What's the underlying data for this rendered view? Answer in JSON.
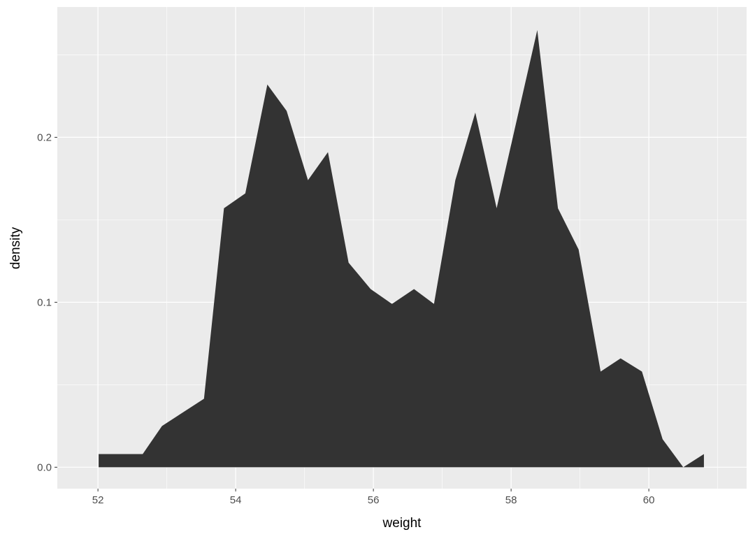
{
  "chart_data": {
    "type": "area",
    "title": "",
    "xlabel": "weight",
    "ylabel": "density",
    "xlim": [
      51.41,
      61.42
    ],
    "ylim": [
      -0.013,
      0.279
    ],
    "x_ticks": [
      "52",
      "54",
      "56",
      "58",
      "60"
    ],
    "x_tick_values": [
      52,
      54,
      56,
      58,
      60
    ],
    "y_ticks": [
      "0.0",
      "0.1",
      "0.2"
    ],
    "y_tick_values": [
      0,
      0.1,
      0.2
    ],
    "grid": true,
    "fill_color": "#333333",
    "panel_color": "#ebebeb",
    "x": [
      52.01,
      52.65,
      52.93,
      53.54,
      53.83,
      54.14,
      54.46,
      54.74,
      55.05,
      55.34,
      55.64,
      55.96,
      56.27,
      56.59,
      56.88,
      57.19,
      57.48,
      57.79,
      58.38,
      58.68,
      58.98,
      59.3,
      59.59,
      59.9,
      60.2,
      60.5,
      60.8
    ],
    "y": [
      0.008,
      0.008,
      0.025,
      0.0415,
      0.157,
      0.166,
      0.232,
      0.216,
      0.174,
      0.191,
      0.124,
      0.108,
      0.099,
      0.108,
      0.099,
      0.174,
      0.215,
      0.157,
      0.265,
      0.157,
      0.132,
      0.058,
      0.066,
      0.058,
      0.017,
      0.0,
      0.008
    ]
  }
}
